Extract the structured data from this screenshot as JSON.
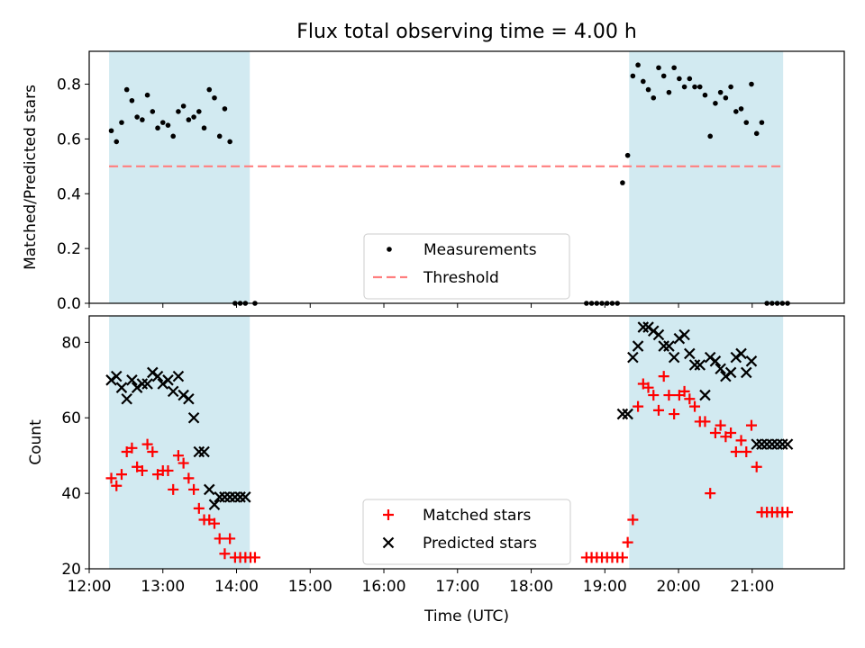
{
  "title": "Flux total observing time = 4.00 h",
  "colors": {
    "band": "#add8e6",
    "measurements": "#000000",
    "threshold": "#ff7f7f",
    "matched": "#ff0000",
    "predicted": "#000000"
  },
  "chart_data": [
    {
      "type": "scatter",
      "ylabel": "Matched/Predicted stars",
      "xlim": [
        12.0,
        22.25
      ],
      "ylim": [
        0.0,
        0.92
      ],
      "yticks": [
        0.0,
        0.2,
        0.4,
        0.6,
        0.8
      ],
      "ytick_labels": [
        "0.0",
        "0.2",
        "0.4",
        "0.6",
        "0.8"
      ],
      "shaded_intervals": [
        [
          12.27,
          14.18
        ],
        [
          19.33,
          21.42
        ]
      ],
      "threshold": {
        "name": "Threshold",
        "value": 0.5,
        "x_range": [
          12.27,
          21.42
        ]
      },
      "legend": {
        "position": "lower center",
        "entries": [
          "Measurements",
          "Threshold"
        ]
      },
      "series": [
        {
          "name": "Measurements",
          "marker": "dot",
          "x": [
            12.3,
            12.37,
            12.44,
            12.51,
            12.58,
            12.65,
            12.72,
            12.79,
            12.86,
            12.93,
            13.0,
            13.07,
            13.14,
            13.21,
            13.28,
            13.35,
            13.42,
            13.49,
            13.56,
            13.63,
            13.7,
            13.77,
            13.84,
            13.91,
            13.98,
            14.05,
            14.12,
            14.25,
            18.75,
            18.82,
            18.89,
            18.96,
            19.03,
            19.1,
            19.17,
            19.24,
            19.31,
            19.38,
            19.45,
            19.52,
            19.59,
            19.66,
            19.73,
            19.8,
            19.87,
            19.94,
            20.01,
            20.08,
            20.15,
            20.22,
            20.29,
            20.36,
            20.43,
            20.5,
            20.57,
            20.64,
            20.71,
            20.78,
            20.85,
            20.92,
            20.99,
            21.06,
            21.13,
            21.2,
            21.27,
            21.34,
            21.41,
            21.48
          ],
          "y": [
            0.63,
            0.59,
            0.66,
            0.78,
            0.74,
            0.68,
            0.67,
            0.76,
            0.7,
            0.64,
            0.66,
            0.65,
            0.61,
            0.7,
            0.72,
            0.67,
            0.68,
            0.7,
            0.64,
            0.78,
            0.75,
            0.61,
            0.71,
            0.59,
            0.0,
            0.0,
            0.0,
            0.0,
            0.0,
            0.0,
            0.0,
            0.0,
            0.0,
            0.0,
            0.0,
            0.44,
            0.54,
            0.83,
            0.87,
            0.81,
            0.78,
            0.75,
            0.86,
            0.83,
            0.77,
            0.86,
            0.82,
            0.79,
            0.82,
            0.79,
            0.79,
            0.76,
            0.61,
            0.73,
            0.77,
            0.75,
            0.79,
            0.7,
            0.71,
            0.66,
            0.8,
            0.62,
            0.66,
            0.0,
            0.0,
            0.0,
            0.0,
            0.0
          ]
        }
      ]
    },
    {
      "type": "scatter",
      "xlabel": "Time (UTC)",
      "ylabel": "Count",
      "xlim": [
        12.0,
        22.25
      ],
      "ylim": [
        20,
        87
      ],
      "yticks": [
        20,
        40,
        60,
        80
      ],
      "ytick_labels": [
        "20",
        "40",
        "60",
        "80"
      ],
      "xticks": [
        12,
        13,
        14,
        15,
        16,
        17,
        18,
        19,
        20,
        21
      ],
      "xtick_labels": [
        "12:00",
        "13:00",
        "14:00",
        "15:00",
        "16:00",
        "17:00",
        "18:00",
        "19:00",
        "20:00",
        "21:00"
      ],
      "shaded_intervals": [
        [
          12.27,
          14.18
        ],
        [
          19.33,
          21.42
        ]
      ],
      "legend": {
        "position": "lower center",
        "entries": [
          "Matched stars",
          "Predicted stars"
        ]
      },
      "series": [
        {
          "name": "Matched stars",
          "marker": "plus",
          "x": [
            12.3,
            12.37,
            12.44,
            12.51,
            12.58,
            12.65,
            12.72,
            12.79,
            12.86,
            12.93,
            13.0,
            13.07,
            13.14,
            13.21,
            13.28,
            13.35,
            13.42,
            13.49,
            13.56,
            13.63,
            13.7,
            13.77,
            13.84,
            13.91,
            13.98,
            14.05,
            14.12,
            14.19,
            14.25,
            18.75,
            18.82,
            18.89,
            18.96,
            19.03,
            19.1,
            19.17,
            19.24,
            19.31,
            19.38,
            19.45,
            19.52,
            19.59,
            19.66,
            19.73,
            19.8,
            19.87,
            19.94,
            20.01,
            20.08,
            20.15,
            20.22,
            20.29,
            20.36,
            20.43,
            20.5,
            20.57,
            20.64,
            20.71,
            20.78,
            20.85,
            20.92,
            20.99,
            21.06,
            21.13,
            21.2,
            21.27,
            21.34,
            21.41,
            21.48
          ],
          "y": [
            44,
            42,
            45,
            51,
            52,
            47,
            46,
            53,
            51,
            45,
            46,
            46,
            41,
            50,
            48,
            44,
            41,
            36,
            33,
            33,
            32,
            28,
            24,
            28,
            23,
            23,
            23,
            23,
            23,
            23,
            23,
            23,
            23,
            23,
            23,
            23,
            23,
            27,
            33,
            63,
            69,
            68,
            66,
            62,
            71,
            66,
            61,
            66,
            67,
            65,
            63,
            59,
            59,
            40,
            56,
            58,
            55,
            56,
            51,
            54,
            51,
            58,
            47,
            35,
            35,
            35,
            35,
            35,
            35
          ]
        },
        {
          "name": "Predicted stars",
          "marker": "x",
          "x": [
            12.3,
            12.37,
            12.44,
            12.51,
            12.58,
            12.65,
            12.72,
            12.79,
            12.86,
            12.93,
            13.0,
            13.07,
            13.14,
            13.21,
            13.28,
            13.35,
            13.42,
            13.49,
            13.56,
            13.63,
            13.7,
            13.77,
            13.84,
            13.91,
            13.98,
            14.05,
            14.12,
            19.24,
            19.31,
            19.38,
            19.45,
            19.52,
            19.59,
            19.66,
            19.73,
            19.8,
            19.87,
            19.94,
            20.01,
            20.08,
            20.15,
            20.22,
            20.29,
            20.36,
            20.43,
            20.5,
            20.57,
            20.64,
            20.71,
            20.78,
            20.85,
            20.92,
            20.99,
            21.06,
            21.13,
            21.2,
            21.27,
            21.34,
            21.41,
            21.48
          ],
          "y": [
            70,
            71,
            68,
            65,
            70,
            68,
            69,
            69,
            72,
            71,
            69,
            70,
            67,
            71,
            66,
            65,
            60,
            51,
            51,
            41,
            37,
            39,
            39,
            39,
            39,
            39,
            39,
            61,
            61,
            76,
            79,
            84,
            84,
            83,
            82,
            79,
            79,
            76,
            81,
            82,
            77,
            74,
            74,
            66,
            76,
            75,
            73,
            71,
            72,
            76,
            77,
            72,
            75,
            53,
            53,
            53,
            53,
            53,
            53,
            53
          ]
        }
      ]
    }
  ]
}
